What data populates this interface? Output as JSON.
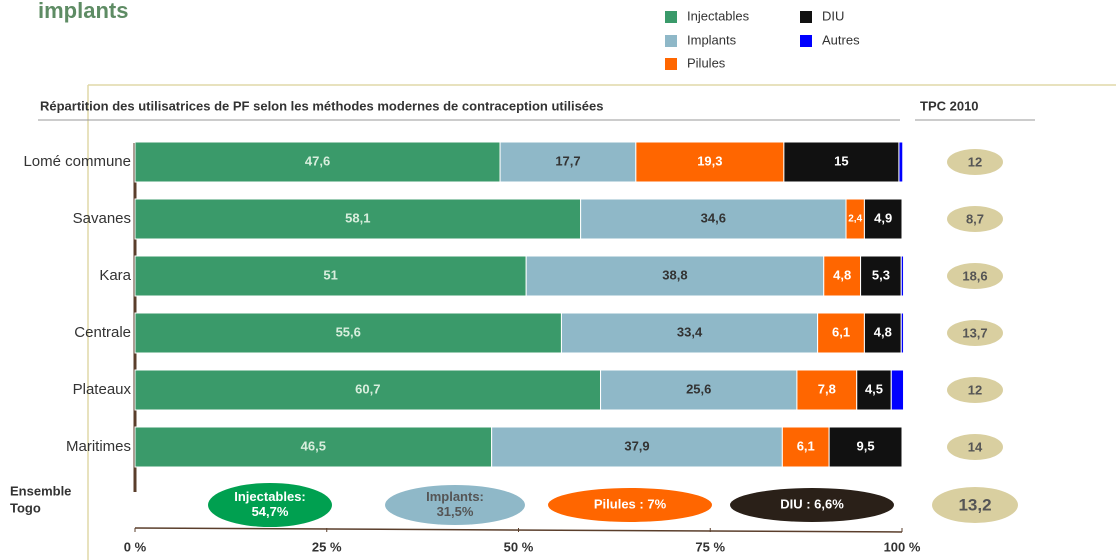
{
  "chart_data": {
    "type": "stacked_hbar",
    "title": "implants",
    "subtitle": "Répartition des utilisatrices de PF selon les méthodes modernes de contraception utilisées",
    "side_header": "TPC 2010",
    "categories": [
      "Lomé commune",
      "Savanes",
      "Kara",
      "Centrale",
      "Plateaux",
      "Maritimes"
    ],
    "series": [
      {
        "name": "Injectables",
        "color": "#3a9a6a",
        "values": [
          47.6,
          58.1,
          51,
          55.6,
          60.7,
          46.5
        ],
        "value_labels": [
          "47,6",
          "58,1",
          "51",
          "55,6",
          "60,7",
          "46,5"
        ]
      },
      {
        "name": "Implants",
        "color": "#8fb8c8",
        "values": [
          17.7,
          34.6,
          38.8,
          33.4,
          25.6,
          37.9
        ],
        "value_labels": [
          "17,7",
          "34,6",
          "38,8",
          "33,4",
          "25,6",
          "37,9"
        ]
      },
      {
        "name": "Pilules",
        "color": "#ff6600",
        "values": [
          19.3,
          2.4,
          4.8,
          6.1,
          7.8,
          6.1
        ],
        "value_labels": [
          "19,3",
          "2,4",
          "4,8",
          "6,1",
          "7,8",
          "6,1"
        ]
      },
      {
        "name": "DIU",
        "color": "#111111",
        "values": [
          15,
          4.9,
          5.3,
          4.8,
          4.5,
          9.5
        ],
        "value_labels": [
          "15",
          "4,9",
          "5,3",
          "4,8",
          "4,5",
          "9,5"
        ]
      },
      {
        "name": "Autres",
        "color": "#0000ff",
        "values": [
          0.5,
          0,
          0.3,
          0.3,
          1.6,
          0
        ]
      }
    ],
    "tpc": {
      "values": [
        12,
        8.7,
        18.6,
        13.7,
        12,
        14
      ],
      "value_labels": [
        "12",
        "8,7",
        "18,6",
        "13,7",
        "12",
        "14"
      ]
    },
    "ensemble": {
      "label": [
        "Ensemble",
        "Togo"
      ],
      "items": [
        {
          "lines": [
            "Injectables:",
            "54,7%"
          ],
          "color": "#00a050"
        },
        {
          "lines": [
            "Implants:",
            "31,5%"
          ],
          "color": "#8fb8c8"
        },
        {
          "lines": [
            "Pilules : 7%"
          ],
          "color": "#ff6600"
        },
        {
          "lines": [
            "DIU : 6,6%"
          ],
          "color": "#2a2018"
        }
      ],
      "tpc": "13,2"
    },
    "xlim": [
      0,
      100
    ],
    "xticks": [
      {
        "value": 0,
        "label": "0 %"
      },
      {
        "value": 25,
        "label": "25 %"
      },
      {
        "value": 50,
        "label": "50 %"
      },
      {
        "value": 75,
        "label": "75 %"
      },
      {
        "value": 100,
        "label": "100 %"
      }
    ]
  }
}
